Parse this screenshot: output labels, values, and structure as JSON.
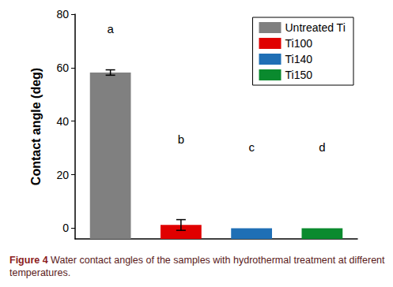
{
  "chart_data": {
    "type": "bar",
    "ylabel": "Contact angle (deg)",
    "categories": [
      "Untreated Ti",
      "Ti100",
      "Ti140",
      "Ti150"
    ],
    "values": [
      58.2,
      1.2,
      0,
      0
    ],
    "errors": [
      1,
      2,
      null,
      null
    ],
    "colors": [
      "#808080",
      "#e00000",
      "#1f6fb5",
      "#0a8a2e"
    ],
    "annotations": [
      "a",
      "b",
      "c",
      "d"
    ],
    "ylim": [
      -4,
      80
    ],
    "yticks": [
      0,
      20,
      40,
      60,
      80
    ],
    "grid": false,
    "legend": "upper right",
    "tick_labels": "y",
    "caption_label": "Figure 4",
    "caption": "Water contact angles of the samples with hydrothermal treatment at different temperatures."
  }
}
